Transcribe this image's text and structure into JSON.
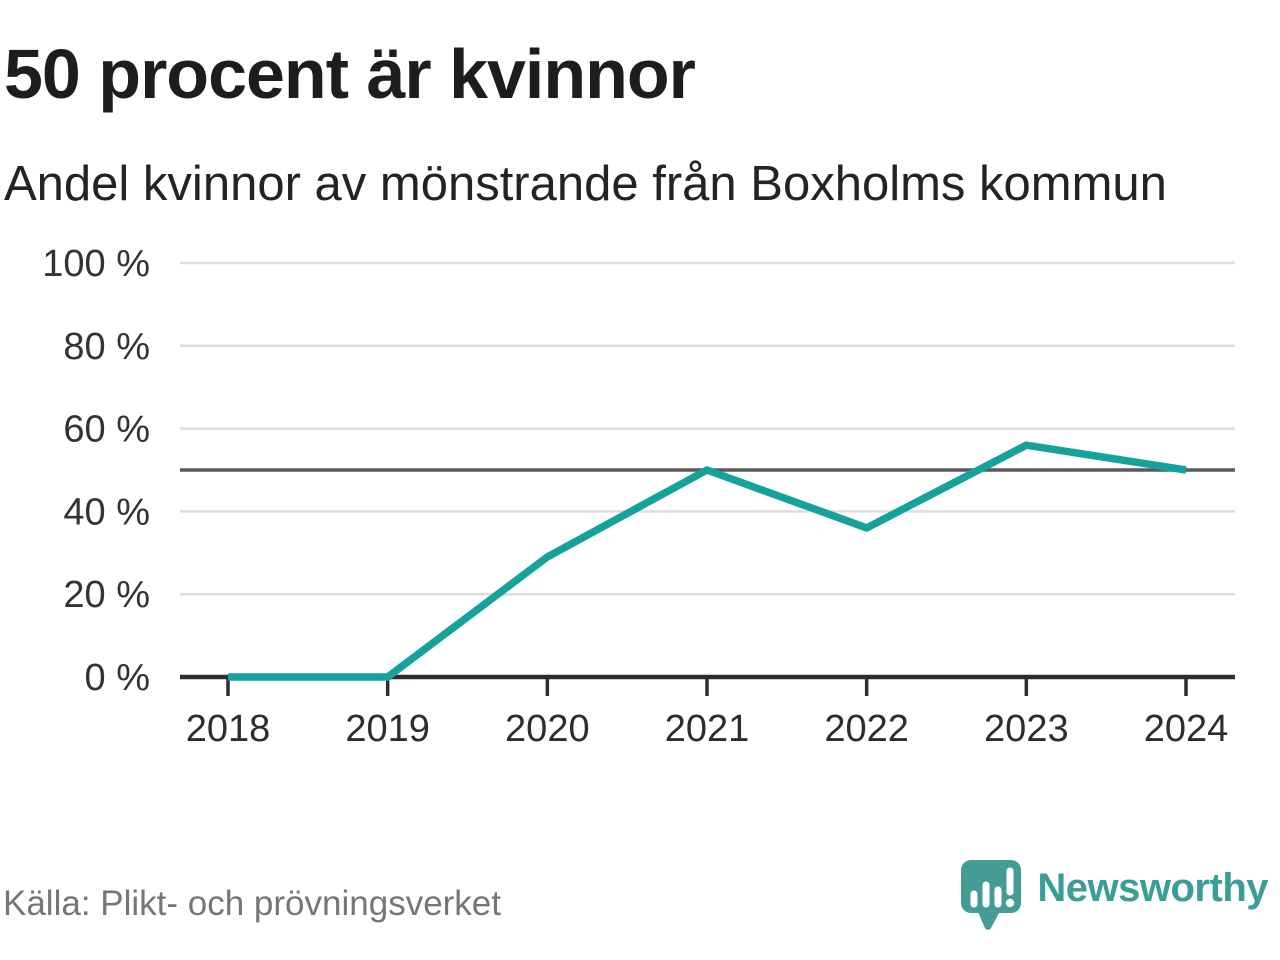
{
  "header": {
    "title": "50 procent är kvinnor",
    "subtitle": "Andel kvinnor av mönstrande från Boxholms kommun"
  },
  "chart_data": {
    "type": "line",
    "title": "50 procent är kvinnor",
    "subtitle": "Andel kvinnor av mönstrande från Boxholms kommun",
    "categories": [
      "2018",
      "2019",
      "2020",
      "2021",
      "2022",
      "2023",
      "2024"
    ],
    "values": [
      0,
      0,
      29,
      50,
      36,
      56,
      50
    ],
    "series_name": "Andel kvinnor av mönstrande",
    "unit": "%",
    "xlabel": "",
    "ylabel": "",
    "ylim": [
      0,
      100
    ],
    "grid": true,
    "legend": "none",
    "yticks": [
      {
        "value": 0,
        "label": "0 %"
      },
      {
        "value": 20,
        "label": "20 %"
      },
      {
        "value": 40,
        "label": "40 %"
      },
      {
        "value": 60,
        "label": "60 %"
      },
      {
        "value": 80,
        "label": "80 %"
      },
      {
        "value": 100,
        "label": "100 %"
      }
    ],
    "reference_line": {
      "value": 50
    },
    "colors": {
      "line": "#14a29a",
      "grid": "#dedede",
      "reference": "#5a5a5a",
      "axis": "#2d2d2d",
      "ytick_label": "#333333",
      "xtick_label": "#2d2d2d"
    }
  },
  "footer": {
    "source": "Källa: Plikt- och prövningsverket",
    "brand": "Newsworthy",
    "brand_color": "#3b9e96",
    "logo_color": "#459c95"
  }
}
